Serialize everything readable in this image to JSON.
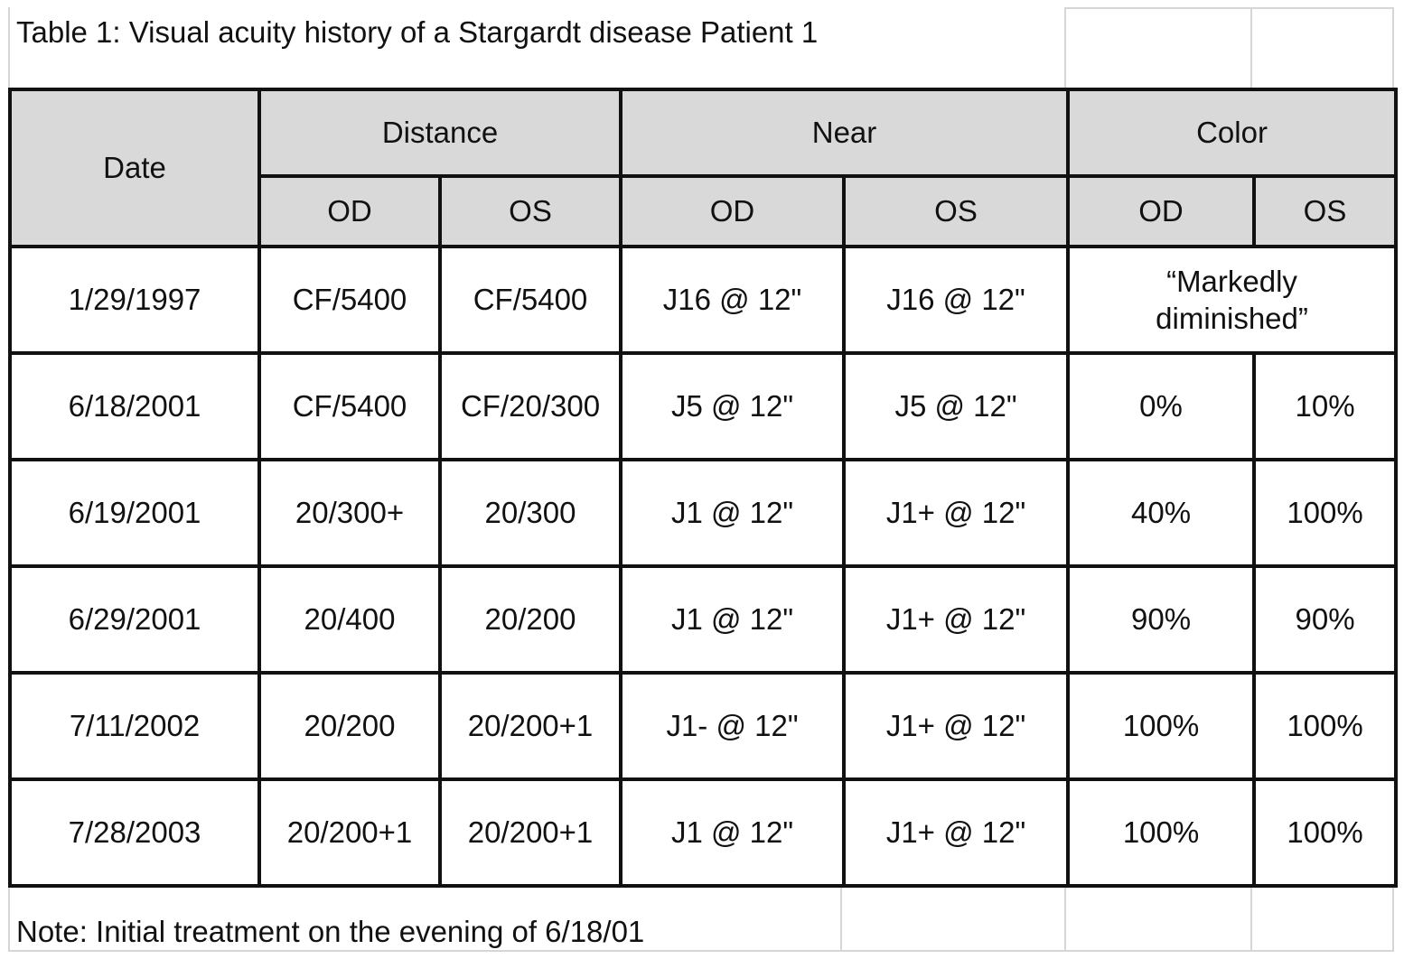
{
  "title": "Table 1: Visual acuity history of a Stargardt disease Patient 1",
  "note": "Note: Initial treatment on the evening of 6/18/01",
  "columns": {
    "date": "Date",
    "groups": [
      "Distance",
      "Near",
      "Color"
    ],
    "sub": [
      "OD",
      "OS",
      "OD",
      "OS",
      "OD",
      "OS"
    ]
  },
  "rows": [
    {
      "date": "1/29/1997",
      "dist_od": "CF/5400",
      "dist_os": "CF/5400",
      "near_od": "J16 @ 12\"",
      "near_os": "J16 @ 12\"",
      "color_merged": "“Markedly diminished”"
    },
    {
      "date": "6/18/2001",
      "dist_od": "CF/5400",
      "dist_os": "CF/20/300",
      "near_od": "J5 @ 12\"",
      "near_os": "J5 @ 12\"",
      "color_od": "0%",
      "color_os": "10%"
    },
    {
      "date": "6/19/2001",
      "dist_od": "20/300+",
      "dist_os": "20/300",
      "near_od": "J1 @ 12\"",
      "near_os": "J1+ @ 12\"",
      "color_od": "40%",
      "color_os": "100%"
    },
    {
      "date": "6/29/2001",
      "dist_od": "20/400",
      "dist_os": "20/200",
      "near_od": "J1 @ 12\"",
      "near_os": "J1+ @ 12\"",
      "color_od": "90%",
      "color_os": "90%"
    },
    {
      "date": "7/11/2002",
      "dist_od": "20/200",
      "dist_os": "20/200+1",
      "near_od": "J1- @ 12\"",
      "near_os": "J1+ @ 12\"",
      "color_od": "100%",
      "color_os": "100%"
    },
    {
      "date": "7/28/2003",
      "dist_od": "20/200+1",
      "dist_os": "20/200+1",
      "near_od": "J1 @ 12\"",
      "near_os": "J1+ @ 12\"",
      "color_od": "100%",
      "color_os": "100%"
    }
  ],
  "colors": {
    "header_fill": "#d9d9d9",
    "border": "#111111",
    "gridline": "#d6d6d6"
  }
}
